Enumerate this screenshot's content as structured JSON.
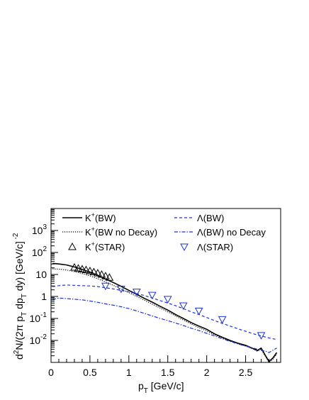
{
  "chart_data": {
    "type": "line",
    "title": "",
    "xlabel": "p_T [GeV/c]",
    "ylabel": "d^2N/(2π p_T dp_T dy) [GeV/c]^-2",
    "xlim": [
      0,
      2.95
    ],
    "ylim_log10": [
      -3,
      4
    ],
    "y_scale": "log",
    "grid": false,
    "legend_position": "top",
    "x_ticks": [
      0,
      0.5,
      1,
      1.5,
      2,
      2.5
    ],
    "x_tick_labels": [
      "0",
      "0.5",
      "1",
      "1.5",
      "2",
      "2.5"
    ],
    "y_ticks": [
      0.01,
      0.1,
      1,
      10,
      100,
      1000
    ],
    "y_tick_labels": [
      {
        "base": "10",
        "exp": "-2"
      },
      {
        "base": "10",
        "exp": "-1"
      },
      {
        "base": "1",
        "exp": ""
      },
      {
        "base": "10",
        "exp": ""
      },
      {
        "base": "10",
        "exp": "2"
      },
      {
        "base": "10",
        "exp": "3"
      }
    ],
    "series": [
      {
        "name": "K+(BW)",
        "label_main": "K",
        "label_sup": "+",
        "label_rest": "(BW)",
        "color": "#000000",
        "style": "solid",
        "x": [
          0.02,
          0.1,
          0.2,
          0.3,
          0.4,
          0.5,
          0.6,
          0.7,
          0.8,
          0.9,
          1.0,
          1.1,
          1.2,
          1.3,
          1.4,
          1.5,
          1.6,
          1.7,
          1.8,
          1.9,
          2.0,
          2.1,
          2.2,
          2.3,
          2.4,
          2.5,
          2.6,
          2.65,
          2.7,
          2.75,
          2.8,
          2.85,
          2.9
        ],
        "y": [
          32,
          30,
          27,
          22,
          17,
          13,
          9,
          6.2,
          4.3,
          2.9,
          1.9,
          1.25,
          0.82,
          0.55,
          0.36,
          0.24,
          0.15,
          0.1,
          0.065,
          0.045,
          0.032,
          0.02,
          0.014,
          0.01,
          0.0075,
          0.006,
          0.0042,
          0.0035,
          0.0045,
          0.0022,
          0.0011,
          0.0016,
          0.0028
        ]
      },
      {
        "name": "K+(BW no Decay)",
        "label_main": "K",
        "label_sup": "+",
        "label_rest": "(BW no Decay)",
        "color": "#000000",
        "style": "dotted",
        "x": [
          0.02,
          0.1,
          0.2,
          0.3,
          0.4,
          0.5,
          0.6,
          0.7,
          0.8,
          0.9,
          1.0,
          1.1,
          1.2,
          1.3,
          1.4,
          1.5,
          1.6,
          1.7,
          1.8,
          1.9,
          2.0,
          2.1,
          2.2,
          2.3,
          2.4,
          2.5,
          2.6,
          2.65,
          2.7,
          2.75,
          2.8,
          2.85,
          2.9
        ],
        "y": [
          18,
          17.5,
          16,
          13.5,
          11,
          8.7,
          6.4,
          4.6,
          3.2,
          2.2,
          1.5,
          1.0,
          0.68,
          0.45,
          0.3,
          0.2,
          0.13,
          0.085,
          0.056,
          0.038,
          0.027,
          0.018,
          0.013,
          0.0095,
          0.007,
          0.0055,
          0.004,
          0.0032,
          0.004,
          0.002,
          0.001,
          0.0014,
          0.0024
        ]
      },
      {
        "name": "K+(STAR)",
        "label_main": "K",
        "label_sup": "+",
        "label_rest": "(STAR)",
        "color": "#000000",
        "style": "marker-triangle-up",
        "x": [
          0.3,
          0.35,
          0.4,
          0.45,
          0.5,
          0.55,
          0.6,
          0.65,
          0.7,
          0.75
        ],
        "y": [
          21,
          19,
          17.5,
          16,
          14.5,
          13,
          11.5,
          10,
          8.5,
          7.3
        ]
      },
      {
        "name": "Λ(BW)",
        "label_main": "Λ",
        "label_sup": "",
        "label_rest": "(BW)",
        "color": "#1a33d1",
        "style": "dashed",
        "x": [
          0.02,
          0.1,
          0.2,
          0.3,
          0.4,
          0.5,
          0.6,
          0.7,
          0.8,
          0.9,
          1.0,
          1.1,
          1.2,
          1.3,
          1.4,
          1.5,
          1.6,
          1.7,
          1.8,
          1.9,
          2.0,
          2.1,
          2.2,
          2.3,
          2.4,
          2.5,
          2.6,
          2.7,
          2.8,
          2.9
        ],
        "y": [
          2.8,
          3.1,
          3.3,
          3.2,
          3.1,
          3.0,
          2.8,
          2.5,
          2.2,
          1.9,
          1.6,
          1.35,
          1.1,
          0.85,
          0.65,
          0.5,
          0.38,
          0.28,
          0.2,
          0.15,
          0.11,
          0.08,
          0.06,
          0.045,
          0.034,
          0.026,
          0.02,
          0.016,
          0.013,
          0.011
        ]
      },
      {
        "name": "Λ(BW) no Decay",
        "label_main": "Λ",
        "label_sup": "",
        "label_rest": "(BW) no Decay",
        "color": "#1a33d1",
        "style": "dashdot",
        "x": [
          0.02,
          0.1,
          0.2,
          0.3,
          0.4,
          0.5,
          0.6,
          0.7,
          0.8,
          0.9,
          1.0,
          1.1,
          1.2,
          1.3,
          1.4,
          1.5,
          1.6,
          1.7,
          1.8,
          1.9,
          2.0,
          2.1,
          2.2,
          2.3,
          2.4,
          2.5,
          2.6,
          2.7,
          2.75,
          2.8,
          2.9
        ],
        "y": [
          0.72,
          0.85,
          0.8,
          0.75,
          0.7,
          0.62,
          0.54,
          0.46,
          0.4,
          0.34,
          0.28,
          0.22,
          0.17,
          0.13,
          0.1,
          0.08,
          0.062,
          0.048,
          0.036,
          0.028,
          0.021,
          0.016,
          0.012,
          0.009,
          0.007,
          0.0055,
          0.0045,
          0.0035,
          0.0033,
          0.0028,
          0.0045
        ]
      },
      {
        "name": "Λ(STAR)",
        "label_main": "Λ",
        "label_sup": "",
        "label_rest": "(STAR)",
        "color": "#1a33d1",
        "style": "marker-triangle-down",
        "x": [
          0.7,
          0.9,
          1.1,
          1.3,
          1.5,
          1.7,
          1.9,
          2.2,
          2.7
        ],
        "y": [
          3.0,
          2.2,
          1.6,
          1.15,
          0.75,
          0.38,
          0.22,
          0.09,
          0.017
        ]
      }
    ]
  }
}
